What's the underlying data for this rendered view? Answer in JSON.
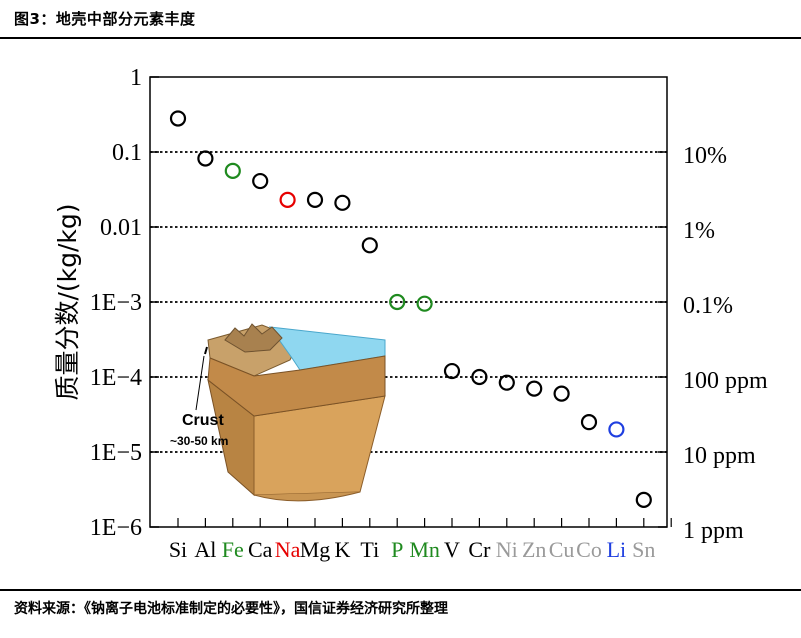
{
  "figure": {
    "title": "图3：地壳中部分元素丰度",
    "source": "资料来源：《钠离子电池标准制定的必要性》，国信证券经济研究所整理"
  },
  "chart_data": {
    "type": "scatter",
    "ylabel": "质量分数/(kg/kg)",
    "yscale": "log",
    "ylim": [
      1e-06,
      1
    ],
    "grid": "dotted horizontal lines at 0.1, 0.01, 1E-3, 1E-4, 1E-5",
    "left_ticks": [
      "1",
      "0.1",
      "0.01",
      "1E−3",
      "1E−4",
      "1E−5",
      "1E−6"
    ],
    "right_ticks": [
      "10%",
      "1%",
      "0.1%",
      "100 ppm",
      "10 ppm",
      "1 ppm"
    ],
    "categories": [
      "Si",
      "Al",
      "Fe",
      "Ca",
      "Na",
      "Mg",
      "K",
      "Ti",
      "P",
      "Mn",
      "V",
      "Cr",
      "Ni",
      "Zn",
      "Cu",
      "Co",
      "Li",
      "Sn"
    ],
    "points": [
      {
        "element": "Si",
        "value": 0.28,
        "color": "#000000"
      },
      {
        "element": "Al",
        "value": 0.082,
        "color": "#000000"
      },
      {
        "element": "Fe",
        "value": 0.056,
        "color": "#1f8a1f"
      },
      {
        "element": "Ca",
        "value": 0.041,
        "color": "#000000"
      },
      {
        "element": "Na",
        "value": 0.023,
        "color": "#e60000"
      },
      {
        "element": "Mg",
        "value": 0.023,
        "color": "#000000"
      },
      {
        "element": "K",
        "value": 0.021,
        "color": "#000000"
      },
      {
        "element": "Ti",
        "value": 0.0057,
        "color": "#000000"
      },
      {
        "element": "P",
        "value": 0.001,
        "color": "#1f8a1f"
      },
      {
        "element": "Mn",
        "value": 0.00095,
        "color": "#1f8a1f"
      },
      {
        "element": "V",
        "value": 0.00012,
        "color": "#000000"
      },
      {
        "element": "Cr",
        "value": 0.0001,
        "color": "#000000"
      },
      {
        "element": "Ni",
        "value": 8.4e-05,
        "color": "#000000"
      },
      {
        "element": "Zn",
        "value": 7e-05,
        "color": "#000000"
      },
      {
        "element": "Cu",
        "value": 6e-05,
        "color": "#000000"
      },
      {
        "element": "Co",
        "value": 2.5e-05,
        "color": "#000000"
      },
      {
        "element": "Li",
        "value": 2e-05,
        "color": "#1f3fe0"
      },
      {
        "element": "Sn",
        "value": 2.3e-06,
        "color": "#000000"
      }
    ],
    "label_colors": {
      "Si": "#000000",
      "Al": "#000000",
      "Fe": "#1f8a1f",
      "Ca": "#000000",
      "Na": "#e60000",
      "Mg": "#000000",
      "K": "#000000",
      "Ti": "#000000",
      "P": "#1f8a1f",
      "Mn": "#1f8a1f",
      "V": "#000000",
      "Cr": "#000000",
      "Ni": "#9a9a9a",
      "Zn": "#9a9a9a",
      "Cu": "#9a9a9a",
      "Co": "#9a9a9a",
      "Li": "#1f3fe0",
      "Sn": "#9a9a9a"
    },
    "inset": {
      "label": "Crust",
      "sublabel": "~30-50 km"
    }
  }
}
